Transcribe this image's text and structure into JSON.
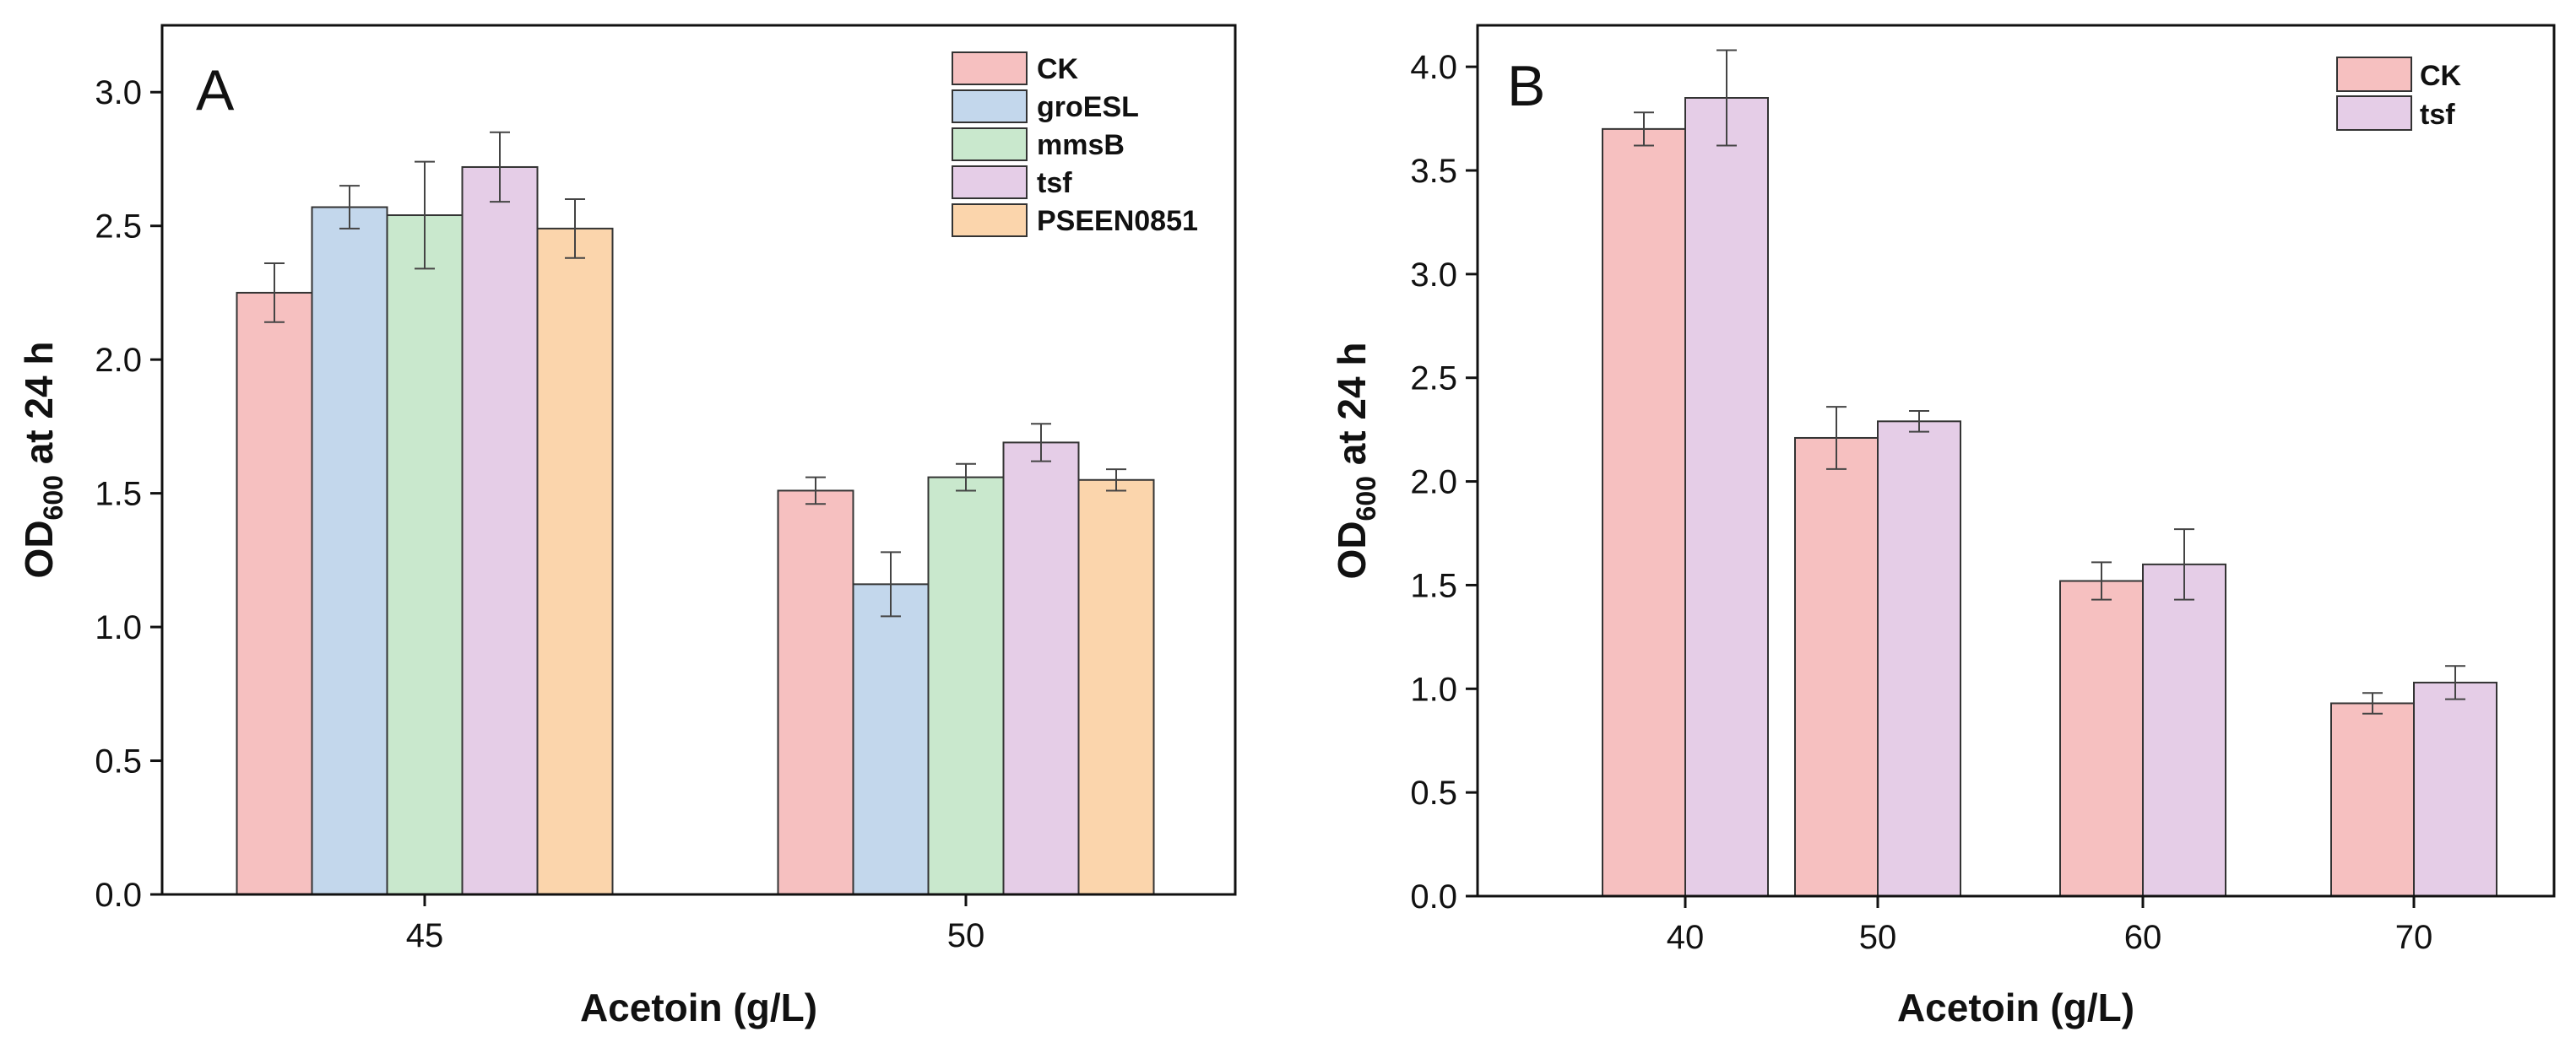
{
  "chart_data": [
    {
      "type": "bar",
      "panel_label": "A",
      "xlabel": "Acetoin (g/L)",
      "ylabel": {
        "main": "OD",
        "sub": "600",
        "rest": " at 24 h"
      },
      "ylim": [
        0,
        3.25
      ],
      "yticks": [
        0.0,
        0.5,
        1.0,
        1.5,
        2.0,
        2.5,
        3.0
      ],
      "ytick_labels": [
        "0.0",
        "0.5",
        "1.0",
        "1.5",
        "2.0",
        "2.5",
        "3.0"
      ],
      "categories": [
        "45",
        "50"
      ],
      "legend_position": "top-right",
      "series": [
        {
          "name": "CK",
          "color": "#f6c0c0",
          "values": [
            2.25,
            1.51
          ],
          "errors": [
            0.11,
            0.05
          ]
        },
        {
          "name": "groESL",
          "color": "#c3d7ec",
          "values": [
            2.57,
            1.16
          ],
          "errors": [
            0.08,
            0.12
          ]
        },
        {
          "name": "mmsB",
          "color": "#c9e8cd",
          "values": [
            2.54,
            1.56
          ],
          "errors": [
            0.2,
            0.05
          ]
        },
        {
          "name": "tsf",
          "color": "#e5cde7",
          "values": [
            2.72,
            1.69
          ],
          "errors": [
            0.13,
            0.07
          ]
        },
        {
          "name": "PSEEN0851",
          "color": "#fbd5ac",
          "values": [
            2.49,
            1.55
          ],
          "errors": [
            0.11,
            0.04
          ]
        }
      ]
    },
    {
      "type": "bar",
      "panel_label": "B",
      "xlabel": "Acetoin (g/L)",
      "ylabel": {
        "main": "OD",
        "sub": "600",
        "rest": " at 24 h"
      },
      "ylim": [
        0,
        4.2
      ],
      "yticks": [
        0.0,
        0.5,
        1.0,
        1.5,
        2.0,
        2.5,
        3.0,
        3.5,
        4.0
      ],
      "ytick_labels": [
        "0.0",
        "0.5",
        "1.0",
        "1.5",
        "2.0",
        "2.5",
        "3.0",
        "3.5",
        "4.0"
      ],
      "categories": [
        "40",
        "50",
        "60",
        "70"
      ],
      "legend_position": "top-right",
      "series": [
        {
          "name": "CK",
          "color": "#f6c0c0",
          "values": [
            3.7,
            2.21,
            1.52,
            0.93
          ],
          "errors": [
            0.08,
            0.15,
            0.09,
            0.05
          ]
        },
        {
          "name": "tsf",
          "color": "#e5cde7",
          "values": [
            3.85,
            2.29,
            1.6,
            1.03
          ],
          "errors": [
            0.23,
            0.05,
            0.17,
            0.08
          ]
        }
      ]
    }
  ]
}
